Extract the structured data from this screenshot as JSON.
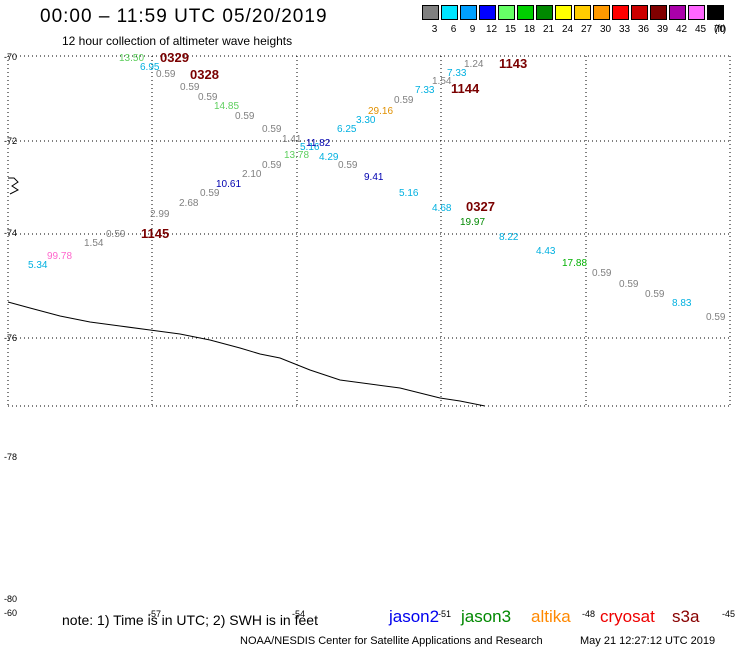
{
  "title": "00:00 – 11:59 UTC 05/20/2019",
  "subtitle": "12 hour collection of altimeter wave heights",
  "scale": {
    "unit": "(ft)",
    "bins": [
      {
        "label": "3",
        "color": "#808080"
      },
      {
        "label": "6",
        "color": "#00e5ff"
      },
      {
        "label": "9",
        "color": "#00a0ff"
      },
      {
        "label": "12",
        "color": "#0000ff"
      },
      {
        "label": "15",
        "color": "#66ff66"
      },
      {
        "label": "18",
        "color": "#00d000"
      },
      {
        "label": "21",
        "color": "#008800"
      },
      {
        "label": "24",
        "color": "#ffff00"
      },
      {
        "label": "27",
        "color": "#ffcc00"
      },
      {
        "label": "30",
        "color": "#ff9900"
      },
      {
        "label": "33",
        "color": "#ff0000"
      },
      {
        "label": "36",
        "color": "#cc0000"
      },
      {
        "label": "39",
        "color": "#800000"
      },
      {
        "label": "42",
        "color": "#aa00aa"
      },
      {
        "label": "45",
        "color": "#ff66ff"
      },
      {
        "label": "70",
        "color": "#000000"
      }
    ]
  },
  "lat_labels": [
    "-70",
    "-72",
    "-74",
    "-76",
    "-78",
    "-80"
  ],
  "lon_labels": [
    "-60",
    "-57",
    "-54",
    "-51",
    "-48",
    "-45"
  ],
  "tracks": [
    {
      "time": "0329",
      "color": "#7a0000"
    },
    {
      "time": "0328",
      "color": "#7a0000"
    },
    {
      "time": "1143",
      "color": "#7a0000"
    },
    {
      "time": "1144",
      "color": "#7a0000"
    },
    {
      "time": "0327",
      "color": "#7a0000"
    },
    {
      "time": "1145",
      "color": "#7a0000"
    }
  ],
  "wave_heights": [
    {
      "value": "13.50",
      "color": "#5ecf5e"
    },
    {
      "value": "6.95",
      "color": "#00b0e0"
    },
    {
      "value": "0.59",
      "color": "#808080"
    },
    {
      "value": "0.59",
      "color": "#808080"
    },
    {
      "value": "0.59",
      "color": "#808080"
    },
    {
      "value": "14.85",
      "color": "#5ecf5e"
    },
    {
      "value": "0.59",
      "color": "#808080"
    },
    {
      "value": "0.59",
      "color": "#808080"
    },
    {
      "value": "1.41",
      "color": "#808080"
    },
    {
      "value": "13.78",
      "color": "#5ecf5e"
    },
    {
      "value": "5.16",
      "color": "#00b0e0"
    },
    {
      "value": "11.82",
      "color": "#0000b0"
    },
    {
      "value": "4.29",
      "color": "#00b0e0"
    },
    {
      "value": "0.59",
      "color": "#808080"
    },
    {
      "value": "9.41",
      "color": "#0000b0"
    },
    {
      "value": "5.16",
      "color": "#00b0e0"
    },
    {
      "value": "4.68",
      "color": "#00b0e0"
    },
    {
      "value": "19.97",
      "color": "#008800"
    },
    {
      "value": "8.22",
      "color": "#00b0e0"
    },
    {
      "value": "4.43",
      "color": "#00b0e0"
    },
    {
      "value": "17.88",
      "color": "#00b000"
    },
    {
      "value": "0.59",
      "color": "#808080"
    },
    {
      "value": "0.59",
      "color": "#808080"
    },
    {
      "value": "0.59",
      "color": "#808080"
    },
    {
      "value": "8.83",
      "color": "#00b0e0"
    },
    {
      "value": "0.59",
      "color": "#808080"
    },
    {
      "value": "1.24",
      "color": "#808080"
    },
    {
      "value": "7.33",
      "color": "#00b0e0"
    },
    {
      "value": "1.54",
      "color": "#808080"
    },
    {
      "value": "7.33",
      "color": "#00b0e0"
    },
    {
      "value": "0.59",
      "color": "#808080"
    },
    {
      "value": "29.16",
      "color": "#e09000"
    },
    {
      "value": "3.30",
      "color": "#00b0e0"
    },
    {
      "value": "6.25",
      "color": "#00b0e0"
    },
    {
      "value": "0.59",
      "color": "#808080"
    },
    {
      "value": "2.10",
      "color": "#808080"
    },
    {
      "value": "10.61",
      "color": "#0000b0"
    },
    {
      "value": "0.59",
      "color": "#808080"
    },
    {
      "value": "2.68",
      "color": "#808080"
    },
    {
      "value": "2.99",
      "color": "#808080"
    },
    {
      "value": "0.59",
      "color": "#808080"
    },
    {
      "value": "1.54",
      "color": "#808080"
    },
    {
      "value": "99.78",
      "color": "#ff66cc"
    },
    {
      "value": "5.34",
      "color": "#00b0e0"
    }
  ],
  "note": "note: 1) Time is in UTC; 2) SWH is in feet",
  "satellites": [
    {
      "name": "jason2",
      "color": "#0000ee"
    },
    {
      "name": "jason3",
      "color": "#008800"
    },
    {
      "name": "altika",
      "color": "#ff8800"
    },
    {
      "name": "cryosat",
      "color": "#ee0000"
    },
    {
      "name": "s3a",
      "color": "#880000"
    }
  ],
  "credit": "NOAA/NESDIS Center for Satellite Applications and Research",
  "timestamp": "May 21 12:27:12 UTC 2019"
}
